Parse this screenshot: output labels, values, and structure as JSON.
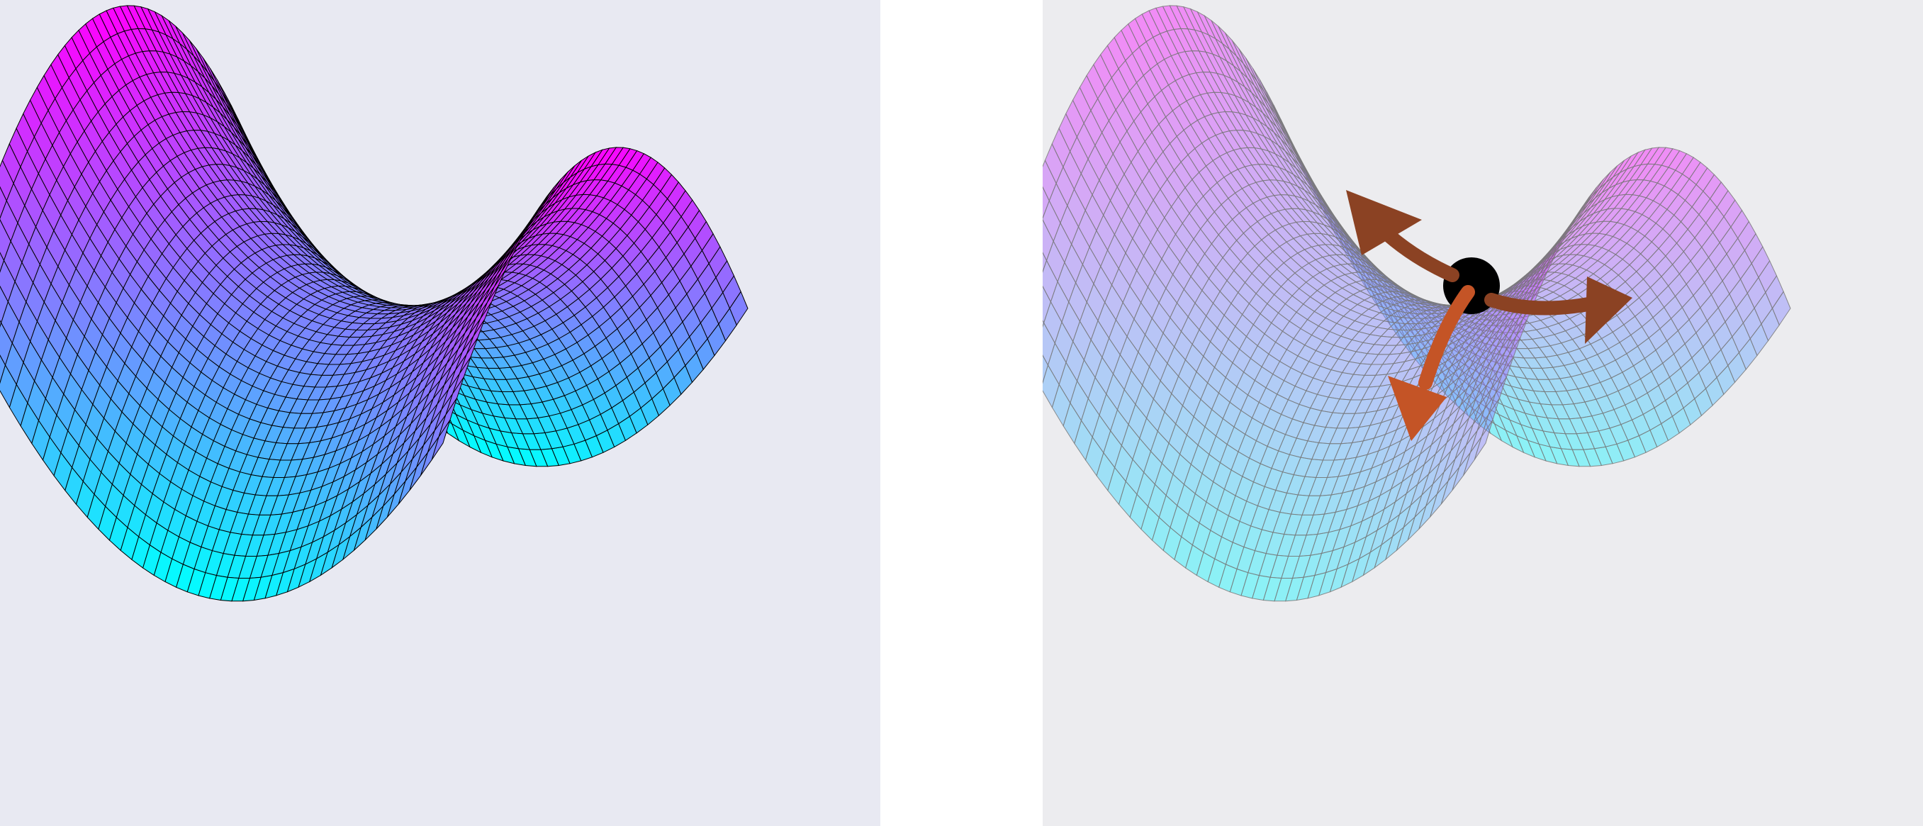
{
  "figure": {
    "panels": [
      {
        "id": "left",
        "description_key": "saddle-surface-plain",
        "background": "#e8e9f2",
        "colormap": [
          "#00ffff",
          "#ff00ff"
        ],
        "gridline_color": "#000000",
        "surface_opacity": 1.0
      },
      {
        "id": "right",
        "description_key": "saddle-surface-with-escape-arrows",
        "background": "#ececef",
        "colormap": [
          "#00ffff",
          "#ff00ff"
        ],
        "gridline_color": "#7a7a7a",
        "surface_opacity": 0.42,
        "saddle_point_color": "#000000",
        "arrows": [
          {
            "name": "arrow-up-left",
            "color": "#8b4223"
          },
          {
            "name": "arrow-right",
            "color": "#8b4223"
          },
          {
            "name": "arrow-down",
            "color": "#c45426"
          }
        ]
      }
    ],
    "surface": {
      "function": "z = x^2 - y^2",
      "grid_u": 44,
      "grid_v": 44
    }
  }
}
